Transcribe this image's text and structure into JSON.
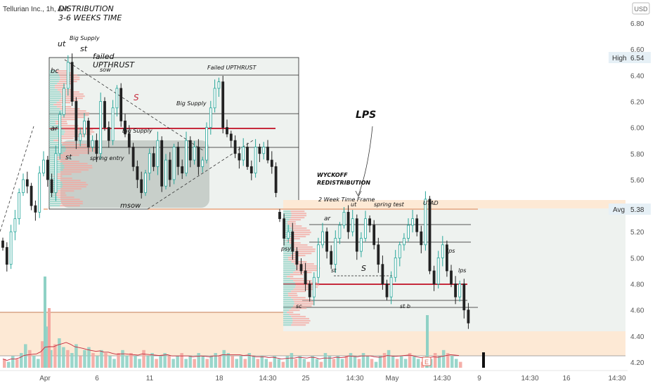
{
  "header": {
    "symbol_text": "Tellurian Inc., 1h, AM",
    "currency_badge": "USD"
  },
  "markers": {
    "high_label": "High",
    "high_value": "6.54",
    "avg_label": "Avg",
    "avg_value": "5.38",
    "earnings_flag": "E"
  },
  "colors": {
    "up": "#26a69a",
    "down": "#222222",
    "vol_up": "#8fd1c5",
    "vol_down": "#f4a6a0",
    "red_line": "#c62a3c",
    "orange_line": "#e8a37c",
    "orange_zone": "#fde9d5",
    "gray_zone": "#9aa49e",
    "box_fill": "#eef2ef"
  },
  "chart_data": {
    "type": "candlestick",
    "ylim": [
      4.14,
      6.92
    ],
    "y_ticks": [
      "6.80",
      "6.60",
      "6.40",
      "6.20",
      "6.00",
      "5.80",
      "5.60",
      "5.40",
      "5.20",
      "5.00",
      "4.80",
      "4.60",
      "4.40",
      "4.20"
    ],
    "x_ticks": [
      "Apr",
      "6",
      "11",
      "18",
      "14:30",
      "25",
      "14:30",
      "May",
      "14:30",
      "9",
      "14:30",
      "16",
      "14:30"
    ],
    "high": 6.54,
    "avg": 5.38,
    "path_1": [
      5.08,
      4.95,
      5.2,
      5.3,
      5.5,
      5.6,
      5.55,
      5.4,
      5.35,
      5.65,
      5.75,
      5.6,
      5.5,
      5.8,
      6.1,
      6.3,
      6.5,
      6.2,
      5.9,
      5.95,
      6.05,
      5.85,
      5.9,
      5.8,
      6.2,
      6.0,
      5.9,
      6.15,
      6.3,
      6.05,
      5.95,
      5.85,
      5.7,
      5.6,
      5.5,
      5.65,
      5.8,
      5.7,
      5.9,
      5.55,
      5.75,
      5.6,
      5.85,
      5.7,
      5.65,
      5.9,
      5.75,
      5.85,
      5.7,
      5.75,
      6.0,
      6.15,
      6.3,
      6.35,
      6.0,
      5.95,
      5.9,
      5.8,
      5.75,
      5.85,
      5.7,
      5.65,
      5.85,
      5.8,
      5.85,
      5.75,
      5.7,
      5.5
    ],
    "path_2": [
      5.3,
      5.15,
      5.2,
      5.05,
      4.95,
      4.9,
      4.8,
      4.7,
      4.85,
      5.1,
      5.2,
      5.05,
      4.95,
      5.15,
      5.25,
      5.35,
      5.2,
      5.3,
      5.05,
      5.15,
      5.3,
      5.25,
      5.1,
      4.95,
      4.8,
      4.7,
      4.85,
      5.0,
      5.1,
      5.15,
      5.25,
      5.3,
      5.2,
      5.1,
      5.45,
      4.9,
      4.8,
      5.0,
      5.1,
      4.9,
      4.8,
      4.7,
      4.8,
      4.6,
      4.5
    ],
    "volume_bars": [
      3,
      2,
      4,
      3,
      5,
      8,
      6,
      4,
      3,
      9,
      14,
      6,
      8,
      10,
      7,
      6,
      5,
      8,
      4,
      6,
      7,
      5,
      4,
      6,
      5,
      4,
      3,
      5,
      6,
      4,
      5,
      4,
      3,
      6,
      4,
      5,
      3,
      4,
      5,
      4,
      3,
      4,
      5,
      3,
      4,
      3,
      5,
      4,
      3,
      4,
      5,
      4,
      6,
      5,
      4,
      3,
      4,
      3,
      5,
      4,
      3,
      4,
      3,
      2,
      4,
      3,
      2,
      4,
      5,
      3,
      4,
      3,
      2,
      4,
      3,
      2,
      5,
      4,
      3,
      4,
      3,
      4,
      5,
      4,
      3,
      5,
      4,
      3,
      2,
      4,
      5,
      6,
      4,
      3,
      4,
      3,
      5,
      4,
      3,
      2,
      4,
      3,
      5,
      4,
      6,
      5,
      4,
      3,
      2
    ],
    "levels": {
      "red_left": 6.0,
      "red_right": 4.8,
      "zone_top": 4.6,
      "zone_bottom": 4.24,
      "orange_right": 5.38
    }
  },
  "annotations": {
    "distribution_title": "DISTRIBUTION",
    "distribution_time": "3-6 WEEKS TIME",
    "big_supply_1": "Big Supply",
    "ut": "ut",
    "st_top": "st",
    "failed_upthrust_hand": "failed",
    "failed_upthrust_hand2": "UPTHRUST",
    "sow": "sow",
    "failed_upthrust": "Failed UPTHRUST",
    "bc": "bc",
    "s_red": "S",
    "big_supply_2": "Big Supply",
    "big_supply_3": "Big Supply",
    "ar_left": "ar",
    "st_left": "st",
    "spring_entry": "spring entry",
    "msow": "msow",
    "lps": "LPS",
    "wyckoff": "WYCKOFF",
    "redistribution": "REDISTRIBUTION",
    "two_week": "2 Week Time Frame",
    "ut_right": "ut",
    "spring_test": "spring test",
    "utad": "UTAD",
    "ar_right": "ar",
    "psy": "psy",
    "st_right": "st",
    "s_right": "S",
    "lps_small_1": "lps",
    "lps_small_2": "lps",
    "sc": "sc",
    "st_b": "st b"
  }
}
